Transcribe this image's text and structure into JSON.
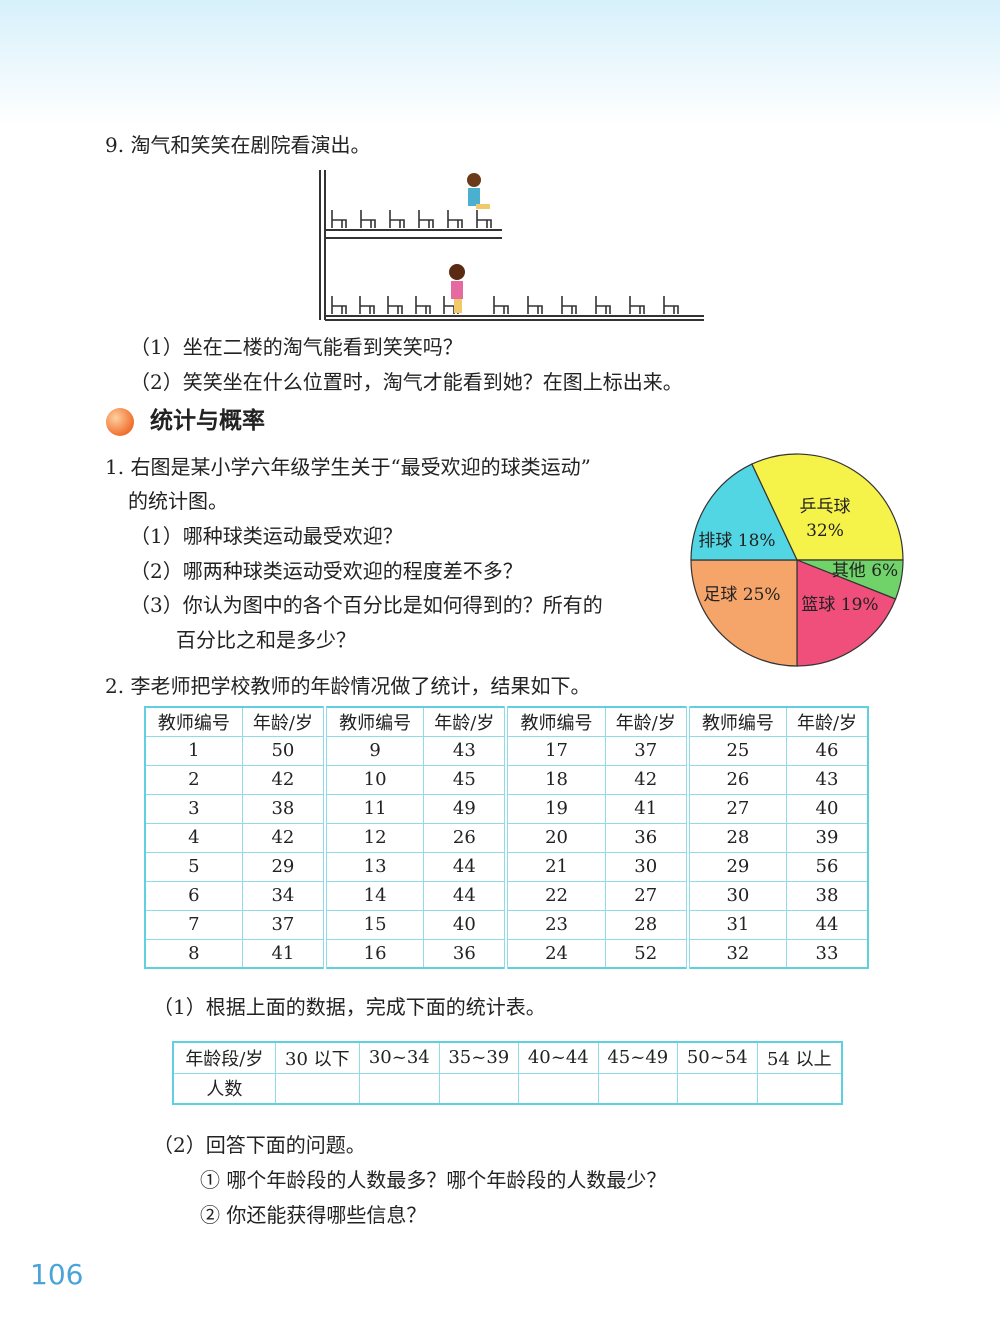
{
  "q9": {
    "title": "9. 淘气和笑笑在剧院看演出。",
    "sub1": "（1）坐在二楼的淘气能看到笑笑吗？",
    "sub2": "（2）笑笑坐在什么位置时，淘气才能看到她？在图上标出来。"
  },
  "section": {
    "title": "统计与概率"
  },
  "q1": {
    "line1": "1. 右图是某小学六年级学生关于“最受欢迎的球类运动”",
    "line2": "的统计图。",
    "sub1": "（1）哪种球类运动最受欢迎？",
    "sub2": "（2）哪两种球类运动受欢迎的程度差不多？",
    "sub3a": "（3）你认为图中的各个百分比是如何得到的？所有的",
    "sub3b": "百分比之和是多少？"
  },
  "chart_data": {
    "type": "pie",
    "slices": [
      {
        "label": "乒乓球",
        "value": 32,
        "text": "32%",
        "color": "#f5f24a"
      },
      {
        "label": "其他",
        "value": 6,
        "text": "其他 6%",
        "color": "#6fd36a"
      },
      {
        "label": "篮球",
        "value": 19,
        "text": "篮球 19%",
        "color": "#ef4f7a"
      },
      {
        "label": "足球",
        "value": 25,
        "text": "足球 25%",
        "color": "#f6a56a"
      },
      {
        "label": "排球",
        "value": 18,
        "text": "排球 18%",
        "color": "#52d6e4"
      }
    ]
  },
  "q2": {
    "title": "2. 李老师把学校教师的年龄情况做了统计，结果如下。",
    "headers": [
      "教师编号",
      "年龄/岁"
    ],
    "ages": [
      50,
      42,
      38,
      42,
      29,
      34,
      37,
      41,
      43,
      45,
      49,
      26,
      44,
      44,
      40,
      36,
      37,
      42,
      41,
      36,
      30,
      27,
      28,
      52,
      46,
      43,
      40,
      39,
      56,
      38,
      44,
      33
    ],
    "sub1": "（1）根据上面的数据，完成下面的统计表。",
    "stat_headers": [
      "年龄段/岁",
      "30 以下",
      "30~34",
      "35~39",
      "40~44",
      "45~49",
      "50~54",
      "54 以上"
    ],
    "stat_row_label": "人数",
    "sub2": "（2）回答下面的问题。",
    "sub2a": "① 哪个年龄段的人数最多？哪个年龄段的人数最少？",
    "sub2b": "② 你还能获得哪些信息？"
  },
  "page_number": "106"
}
